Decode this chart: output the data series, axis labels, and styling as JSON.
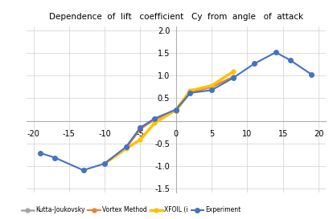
{
  "title": "Dependence  of  lift   coefficient   Cy  from  angle   of  attack",
  "experiment_x": [
    -19,
    -17,
    -13,
    -10,
    -7,
    -5,
    -3,
    0,
    2,
    5,
    8,
    11,
    14,
    16,
    19
  ],
  "experiment_y": [
    -0.72,
    -0.82,
    -1.1,
    -0.95,
    -0.58,
    -0.15,
    0.05,
    0.25,
    0.62,
    0.68,
    0.95,
    1.27,
    1.52,
    1.35,
    1.03
  ],
  "vortex_x": [
    -10,
    -7,
    -5,
    -3,
    0,
    2,
    5,
    8
  ],
  "vortex_y": [
    -0.95,
    -0.6,
    -0.18,
    0.03,
    0.22,
    0.63,
    0.75,
    0.97
  ],
  "kutta_x": [
    -10,
    -7,
    -5,
    -3,
    0,
    2,
    5,
    8
  ],
  "kutta_y": [
    -0.95,
    -0.6,
    -0.18,
    0.03,
    0.22,
    0.63,
    0.75,
    0.97
  ],
  "xfoil_x": [
    -10,
    -7,
    -5,
    -3,
    0,
    2,
    5,
    8
  ],
  "xfoil_y": [
    -0.95,
    -0.62,
    -0.42,
    -0.05,
    0.24,
    0.67,
    0.78,
    1.09
  ],
  "experiment_color": "#4472c4",
  "vortex_color": "#ed7d31",
  "kutta_color": "#a5a5a5",
  "xfoil_color": "#ffc000",
  "xlim": [
    -21,
    21
  ],
  "ylim": [
    -1.6,
    2.1
  ],
  "xticks": [
    -20,
    -15,
    -10,
    -5,
    0,
    5,
    10,
    15,
    20
  ],
  "yticks": [
    -1.5,
    -1.0,
    -0.5,
    0.5,
    1.0,
    1.5,
    2.0
  ],
  "legend_labels": [
    "Experiment",
    "Vortex Method",
    "Kutta-Joukovsky",
    "XFOIL (i"
  ],
  "background_color": "#ffffff",
  "grid_color": "#d0d0d0"
}
